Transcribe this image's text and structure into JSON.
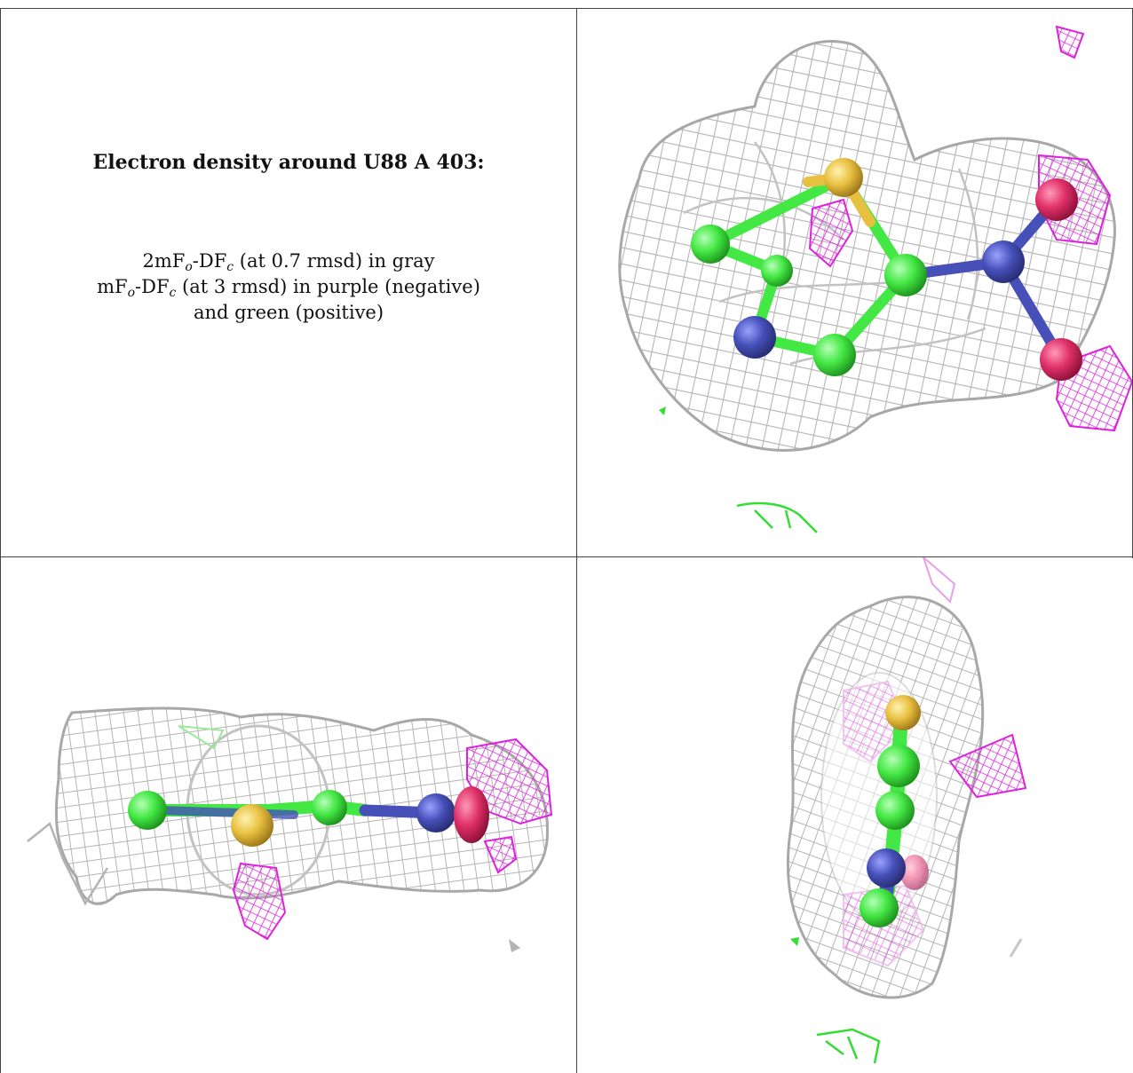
{
  "caption": {
    "heading": "Electron density around U88 A 403:",
    "line1": {
      "a": "2mF",
      "s1": "o",
      "b": "-DF",
      "s2": "c",
      "c": " (at 0.7 rmsd) in gray"
    },
    "line2": {
      "a": "mF",
      "s1": "o",
      "b": "-DF",
      "s2": "c",
      "c": " (at 3 rmsd) in purple (negative)"
    },
    "line3": "and green (positive)"
  },
  "colors": {
    "mesh_2fofc": "#b4b4b4",
    "mesh_negative": "#dd22dd",
    "mesh_positive": "#33dd33",
    "atom_carbon": "#44e844",
    "atom_nitrogen": "#4650b8",
    "atom_oxygen": "#e0306a",
    "atom_sulfur": "#e8c040",
    "grid_lines": "#444444"
  },
  "panels": [
    {
      "view": "top-right",
      "content": "density-map"
    },
    {
      "view": "bottom-left",
      "content": "density-map"
    },
    {
      "view": "bottom-right",
      "content": "density-map"
    }
  ]
}
